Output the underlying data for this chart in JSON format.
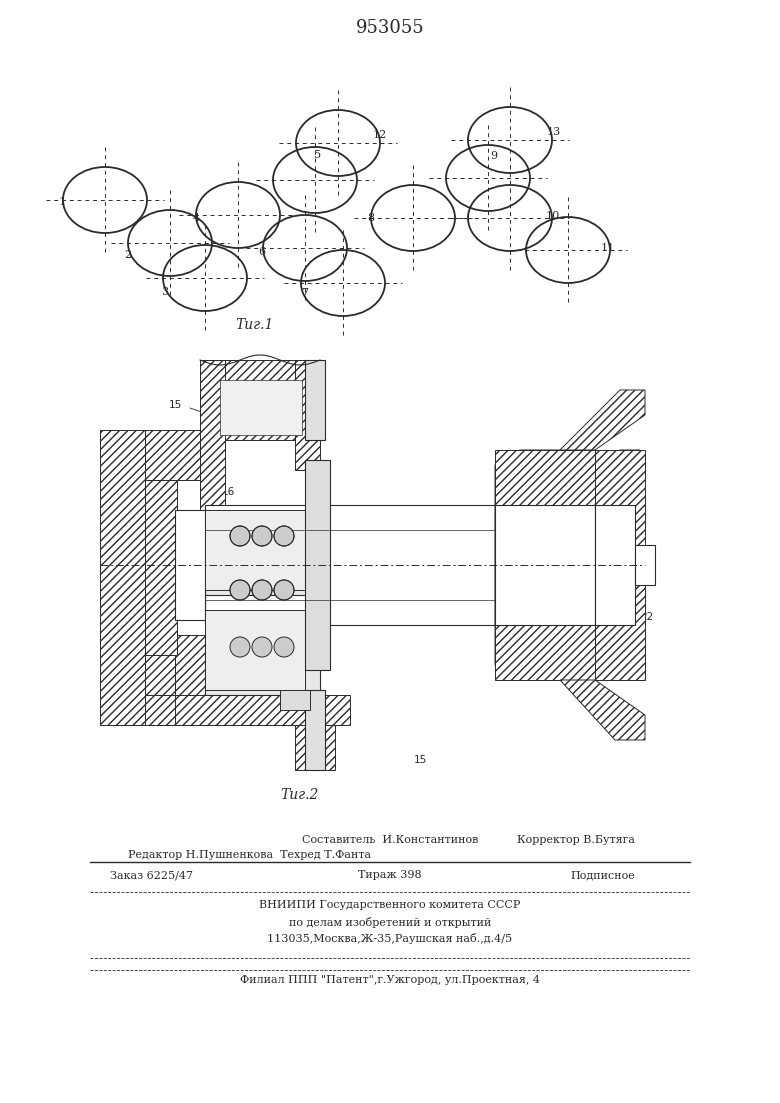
{
  "title": "953055",
  "bg_color": "#ffffff",
  "line_color": "#2a2a2a",
  "fig1_caption": "Τиг.1",
  "fig2_caption": "Τиг.2",
  "footer_line1a": "Составитель  И.Константинов",
  "footer_line1b": "Корректор В.Бутяга",
  "footer_line2": "Редактор Н.Пушненкова  Техред Т.Фанта",
  "footer_line3a": "Заказ 6225/47",
  "footer_line3b": "Тираж 398",
  "footer_line3c": "Подписное",
  "footer_line4": "ВНИИПИ Государственного комитета СССР",
  "footer_line5": "по делам изобретений и открытий",
  "footer_line6": "113035,Москва,Ж-35,Раушская наб.,д.4/5",
  "footer_line7": "Филиал ППП \"Патент\",г.Ужгород, ул.Проектная, 4"
}
